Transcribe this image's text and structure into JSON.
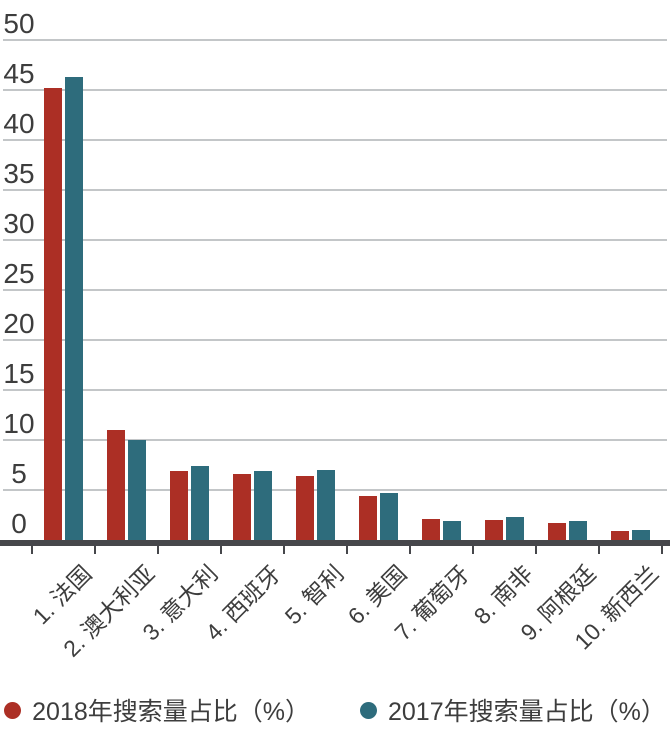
{
  "chart_data": {
    "type": "bar",
    "title": "",
    "xlabel": "",
    "ylabel": "",
    "categories": [
      "1. 法国",
      "2. 澳大利亚",
      "3. 意大利",
      "4. 西班牙",
      "5. 智利",
      "6. 美国",
      "7. 葡萄牙",
      "8. 南非",
      "9. 阿根廷",
      "10. 新西兰"
    ],
    "series": [
      {
        "name": "2018年搜索量占比（%）",
        "color": "#AC2F25",
        "values": [
          45.2,
          11.0,
          6.9,
          6.6,
          6.4,
          4.4,
          2.1,
          2.0,
          1.7,
          0.9
        ]
      },
      {
        "name": "2017年搜索量占比（%）",
        "color": "#2E6C7C",
        "values": [
          46.3,
          10.0,
          7.4,
          6.9,
          7.0,
          4.7,
          1.9,
          2.3,
          1.9,
          1.0
        ]
      }
    ],
    "ylim": [
      0,
      50
    ],
    "yticks": [
      0,
      5,
      10,
      15,
      20,
      25,
      30,
      35,
      40,
      45,
      50
    ],
    "grid": true,
    "grid_color": "#c3c6c8",
    "axis_color": "#46474b",
    "text_color": "#3d3d3d",
    "legend_position": "bottom"
  }
}
